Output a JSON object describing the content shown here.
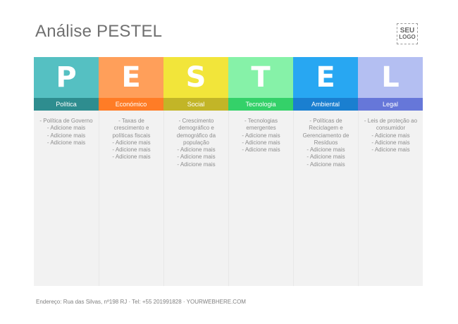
{
  "header": {
    "title": "Análise PESTEL",
    "logo": {
      "line1": "SEU",
      "line2": "LOGO"
    }
  },
  "columns": [
    {
      "letter": "P",
      "label": "Política",
      "colors": {
        "top": "#55c0c2",
        "band": "#2e8d8f"
      },
      "items": [
        "- Política de Governo",
        "- Adicione mais",
        "- Adicione mais",
        "- Adicione mais"
      ]
    },
    {
      "letter": "E",
      "label": "Económico",
      "colors": {
        "top": "#ff9f5a",
        "band": "#ff7c26"
      },
      "items": [
        "- Taxas de\ncrescimento e\npolíticas fiscais",
        "- Adicione mais",
        "- Adicione mais",
        "- Adicione mais"
      ]
    },
    {
      "letter": "S",
      "label": "Social",
      "colors": {
        "top": "#f2e53a",
        "band": "#c2b527"
      },
      "items": [
        "- Crescimento\ndemográfico e\ndemográfico da\npopulação",
        "- Adicione mais",
        "- Adicione mais",
        "- Adicione mais"
      ]
    },
    {
      "letter": "T",
      "label": "Tecnologia",
      "colors": {
        "top": "#86f2a8",
        "band": "#34d169"
      },
      "items": [
        "- Tecnologias\nemergentes",
        "- Adicione mais",
        "- Adicione mais",
        "- Adicione mais"
      ]
    },
    {
      "letter": "E",
      "label": "Ambiental",
      "colors": {
        "top": "#28a7f2",
        "band": "#1a7fd0"
      },
      "items": [
        "- Políticas de\nReciclagem e\nGerenciamento de\nResíduos",
        "- Adicione mais",
        "- Adicione mais",
        "- Adicione mais"
      ]
    },
    {
      "letter": "L",
      "label": "Legal",
      "colors": {
        "top": "#b4bff2",
        "band": "#6677d9"
      },
      "items": [
        "- Leis de proteção ao\nconsumidor",
        "- Adicione mais",
        "- Adicione mais",
        "- Adicione mais"
      ]
    }
  ],
  "footer": {
    "text": "Endereço: Rua das Silvas, nº198 RJ  · Tel: +55 201991828 · YOURWEBHERE.COM"
  }
}
